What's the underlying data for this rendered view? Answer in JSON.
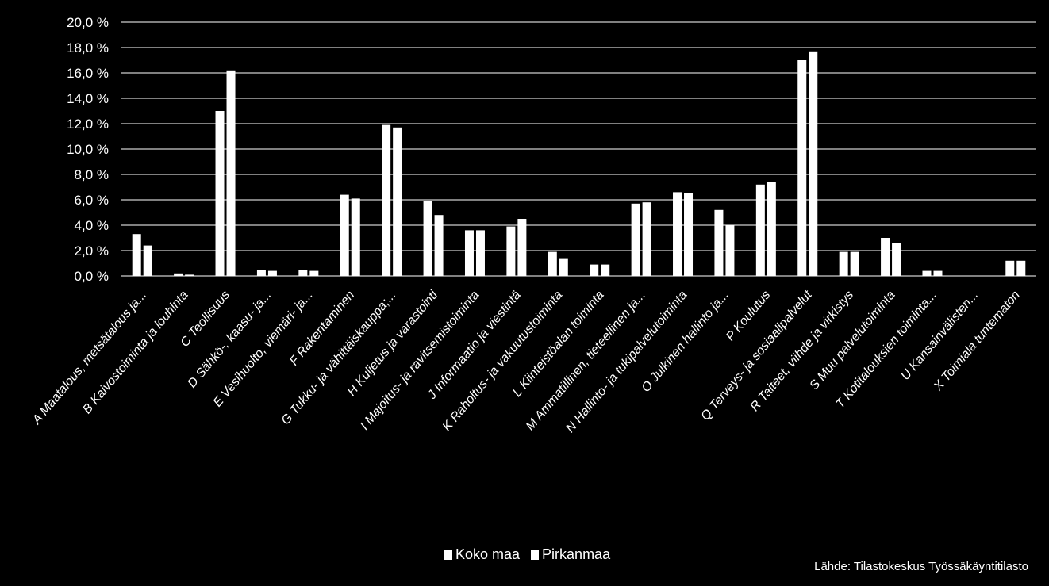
{
  "chart_data": {
    "type": "bar",
    "categories": [
      "A Maatalous, metsätalous ja...",
      "B Kaivostoiminta ja louhinta",
      "C Teollisuus",
      "D Sähkö-, kaasu- ja...",
      "E Vesihuolto, viemäri- ja...",
      "F Rakentaminen",
      "G Tukku- ja vähittäiskauppa;...",
      "H Kuljetus ja varastointi",
      "I Majoitus- ja ravitsemistoiminta",
      "J Informaatio ja viestintä",
      "K Rahoitus- ja vakuutustoiminta",
      "L Kiinteistöalan toiminta",
      "M Ammatillinen, tieteellinen ja...",
      "N Hallinto- ja tukipalvelutoiminta",
      "O Julkinen hallinto ja...",
      "P Koulutus",
      "Q Terveys- ja sosiaalipalvelut",
      "R Taiteet, viihde ja virkistys",
      "S Muu palvelutoiminta",
      "T Kotitalouksien toiminta...",
      "U Kansainvälisten...",
      "X Toimiala tuntematon"
    ],
    "series": [
      {
        "name": "Koko maa",
        "values": [
          3.3,
          0.2,
          13.0,
          0.5,
          0.5,
          6.4,
          11.9,
          5.9,
          3.6,
          3.9,
          1.9,
          0.9,
          5.7,
          6.6,
          5.2,
          7.2,
          17.0,
          1.9,
          3.0,
          0.4,
          0.0,
          1.2
        ]
      },
      {
        "name": "Pirkanmaa",
        "values": [
          2.4,
          0.1,
          16.2,
          0.4,
          0.4,
          6.1,
          11.7,
          4.8,
          3.6,
          4.5,
          1.4,
          0.9,
          5.8,
          6.5,
          4.0,
          7.4,
          17.7,
          1.9,
          2.6,
          0.4,
          0.0,
          1.2
        ]
      }
    ],
    "ylim": [
      0,
      20
    ],
    "yticks": [
      "0,0 %",
      "2,0 %",
      "4,0 %",
      "6,0 %",
      "8,0 %",
      "10,0 %",
      "12,0 %",
      "14,0 %",
      "16,0 %",
      "18,0 %",
      "20,0 %"
    ],
    "grid": true,
    "legend_position": "bottom",
    "source": "Lähde: Tilastokeskus Työssäkäyntitilasto",
    "colors": {
      "background": "#000000",
      "bars": "#ffffff",
      "grid": "#ffffff",
      "text": "#ffffff"
    }
  }
}
